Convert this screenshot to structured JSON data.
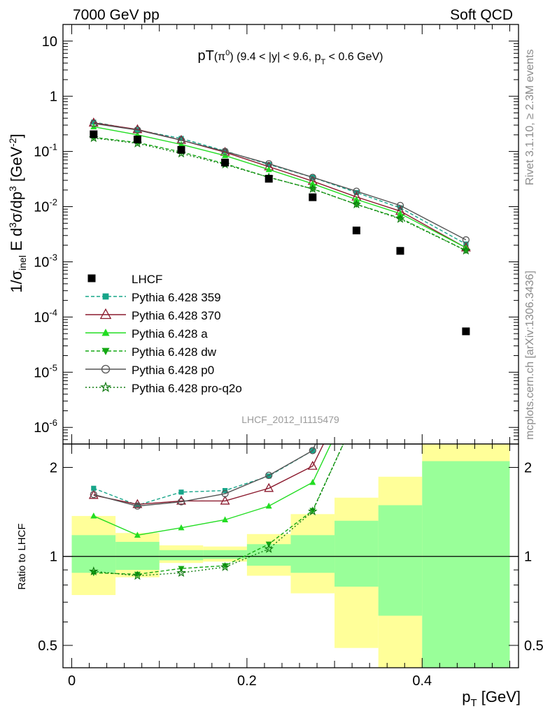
{
  "header": {
    "left": "7000 GeV pp",
    "right": "Soft QCD"
  },
  "side": {
    "rivet": "Rivet 3.1.10, ≥ 2.3M events",
    "mcplots": "mcplots.cern.ch [arXiv:1306.3436]"
  },
  "chart_data": {
    "type": "line",
    "title": "pT(π⁰) (9.4 < |y| < 9.6, p_T < 0.6 GeV)",
    "analysis": "LHCF_2012_I1115479",
    "xlabel": "p_T [GeV]",
    "ylabel": "1/σ_inel E d³σ/dp³ [GeV⁻²]",
    "ratio_ylabel": "Ratio to LHCF",
    "xlim": [
      -0.01,
      0.51
    ],
    "ylim": [
      5e-07,
      20
    ],
    "yscale": "log",
    "ratio_ylim": [
      0.42,
      2.4
    ],
    "ratio_yscale": "log",
    "x_ticks": [
      "0",
      "0.2",
      "0.4"
    ],
    "ratio_ticks": [
      "0.5",
      "1",
      "2"
    ],
    "x": [
      0.025,
      0.075,
      0.125,
      0.175,
      0.225,
      0.275,
      0.325,
      0.375,
      0.45
    ],
    "data": {
      "name": "LHCF",
      "values": [
        0.205,
        0.165,
        0.107,
        0.063,
        0.032,
        0.0148,
        0.0037,
        0.00158,
        5.5e-05
      ],
      "color": "#000000"
    },
    "uncertainty_bands": {
      "x_edges": [
        0,
        0.05,
        0.1,
        0.15,
        0.2,
        0.25,
        0.3,
        0.35,
        0.4,
        0.5
      ],
      "stat": [
        [
          0.88,
          1.18
        ],
        [
          0.9,
          1.12
        ],
        [
          0.97,
          1.05
        ],
        [
          0.98,
          1.05
        ],
        [
          0.93,
          1.1
        ],
        [
          0.88,
          1.18
        ],
        [
          0.79,
          1.32
        ],
        [
          0.63,
          1.49
        ],
        [
          0.3,
          2.1
        ]
      ],
      "total": [
        [
          0.74,
          1.37
        ],
        [
          0.85,
          1.2
        ],
        [
          0.95,
          1.09
        ],
        [
          0.96,
          1.08
        ],
        [
          0.86,
          1.19
        ],
        [
          0.75,
          1.39
        ],
        [
          0.49,
          1.58
        ],
        [
          0.3,
          1.86
        ],
        [
          0.3,
          3.0
        ]
      ],
      "stat_color": "#99ff99",
      "total_color": "#ffff99"
    },
    "series": [
      {
        "name": "Pythia 6.428 359",
        "color": "#17a589",
        "dash": "dashed",
        "marker": "square",
        "values": [
          0.34,
          0.245,
          0.172,
          0.102,
          0.058,
          0.034,
          0.018,
          0.0095,
          0.0021
        ],
        "ratio": [
          1.7,
          1.49,
          1.65,
          1.67,
          1.87,
          2.28,
          4.9,
          6.0,
          38
        ]
      },
      {
        "name": "Pythia 6.428 370",
        "color": "#8b1a2e",
        "dash": "solid",
        "marker": "triangle-open",
        "values": [
          0.33,
          0.25,
          0.16,
          0.097,
          0.053,
          0.029,
          0.015,
          0.0083,
          0.0018
        ],
        "ratio": [
          1.61,
          1.5,
          1.54,
          1.54,
          1.7,
          2.02,
          4.05,
          5.25,
          33
        ]
      },
      {
        "name": "Pythia 6.428 a",
        "color": "#22dd22",
        "dash": "solid",
        "marker": "triangle",
        "values": [
          0.28,
          0.2,
          0.134,
          0.084,
          0.047,
          0.026,
          0.0135,
          0.0075,
          0.0018
        ],
        "ratio": [
          1.37,
          1.18,
          1.25,
          1.33,
          1.48,
          1.78,
          3.65,
          4.75,
          33
        ]
      },
      {
        "name": "Pythia 6.428 dw",
        "color": "#13a813",
        "dash": "dashed",
        "marker": "triangle-down",
        "values": [
          0.18,
          0.145,
          0.098,
          0.06,
          0.034,
          0.021,
          0.011,
          0.0062,
          0.0016
        ],
        "ratio": [
          0.88,
          0.87,
          0.91,
          0.93,
          1.1,
          1.43,
          3.0,
          3.9,
          29
        ]
      },
      {
        "name": "Pythia 6.428 p0",
        "color": "#555555",
        "dash": "solid",
        "marker": "circle-open",
        "values": [
          0.32,
          0.245,
          0.16,
          0.1,
          0.06,
          0.034,
          0.019,
          0.0105,
          0.0025
        ],
        "ratio": [
          1.62,
          1.48,
          1.53,
          1.63,
          1.88,
          2.28,
          5.1,
          6.6,
          45
        ]
      },
      {
        "name": "Pythia 6.428 pro-q2o",
        "color": "#0f7a0f",
        "dash": "dotted",
        "marker": "star",
        "values": [
          0.175,
          0.14,
          0.092,
          0.058,
          0.034,
          0.021,
          0.011,
          0.006,
          0.0016
        ],
        "ratio": [
          0.89,
          0.86,
          0.88,
          0.92,
          1.06,
          1.42,
          3.0,
          3.8,
          29
        ]
      }
    ]
  }
}
